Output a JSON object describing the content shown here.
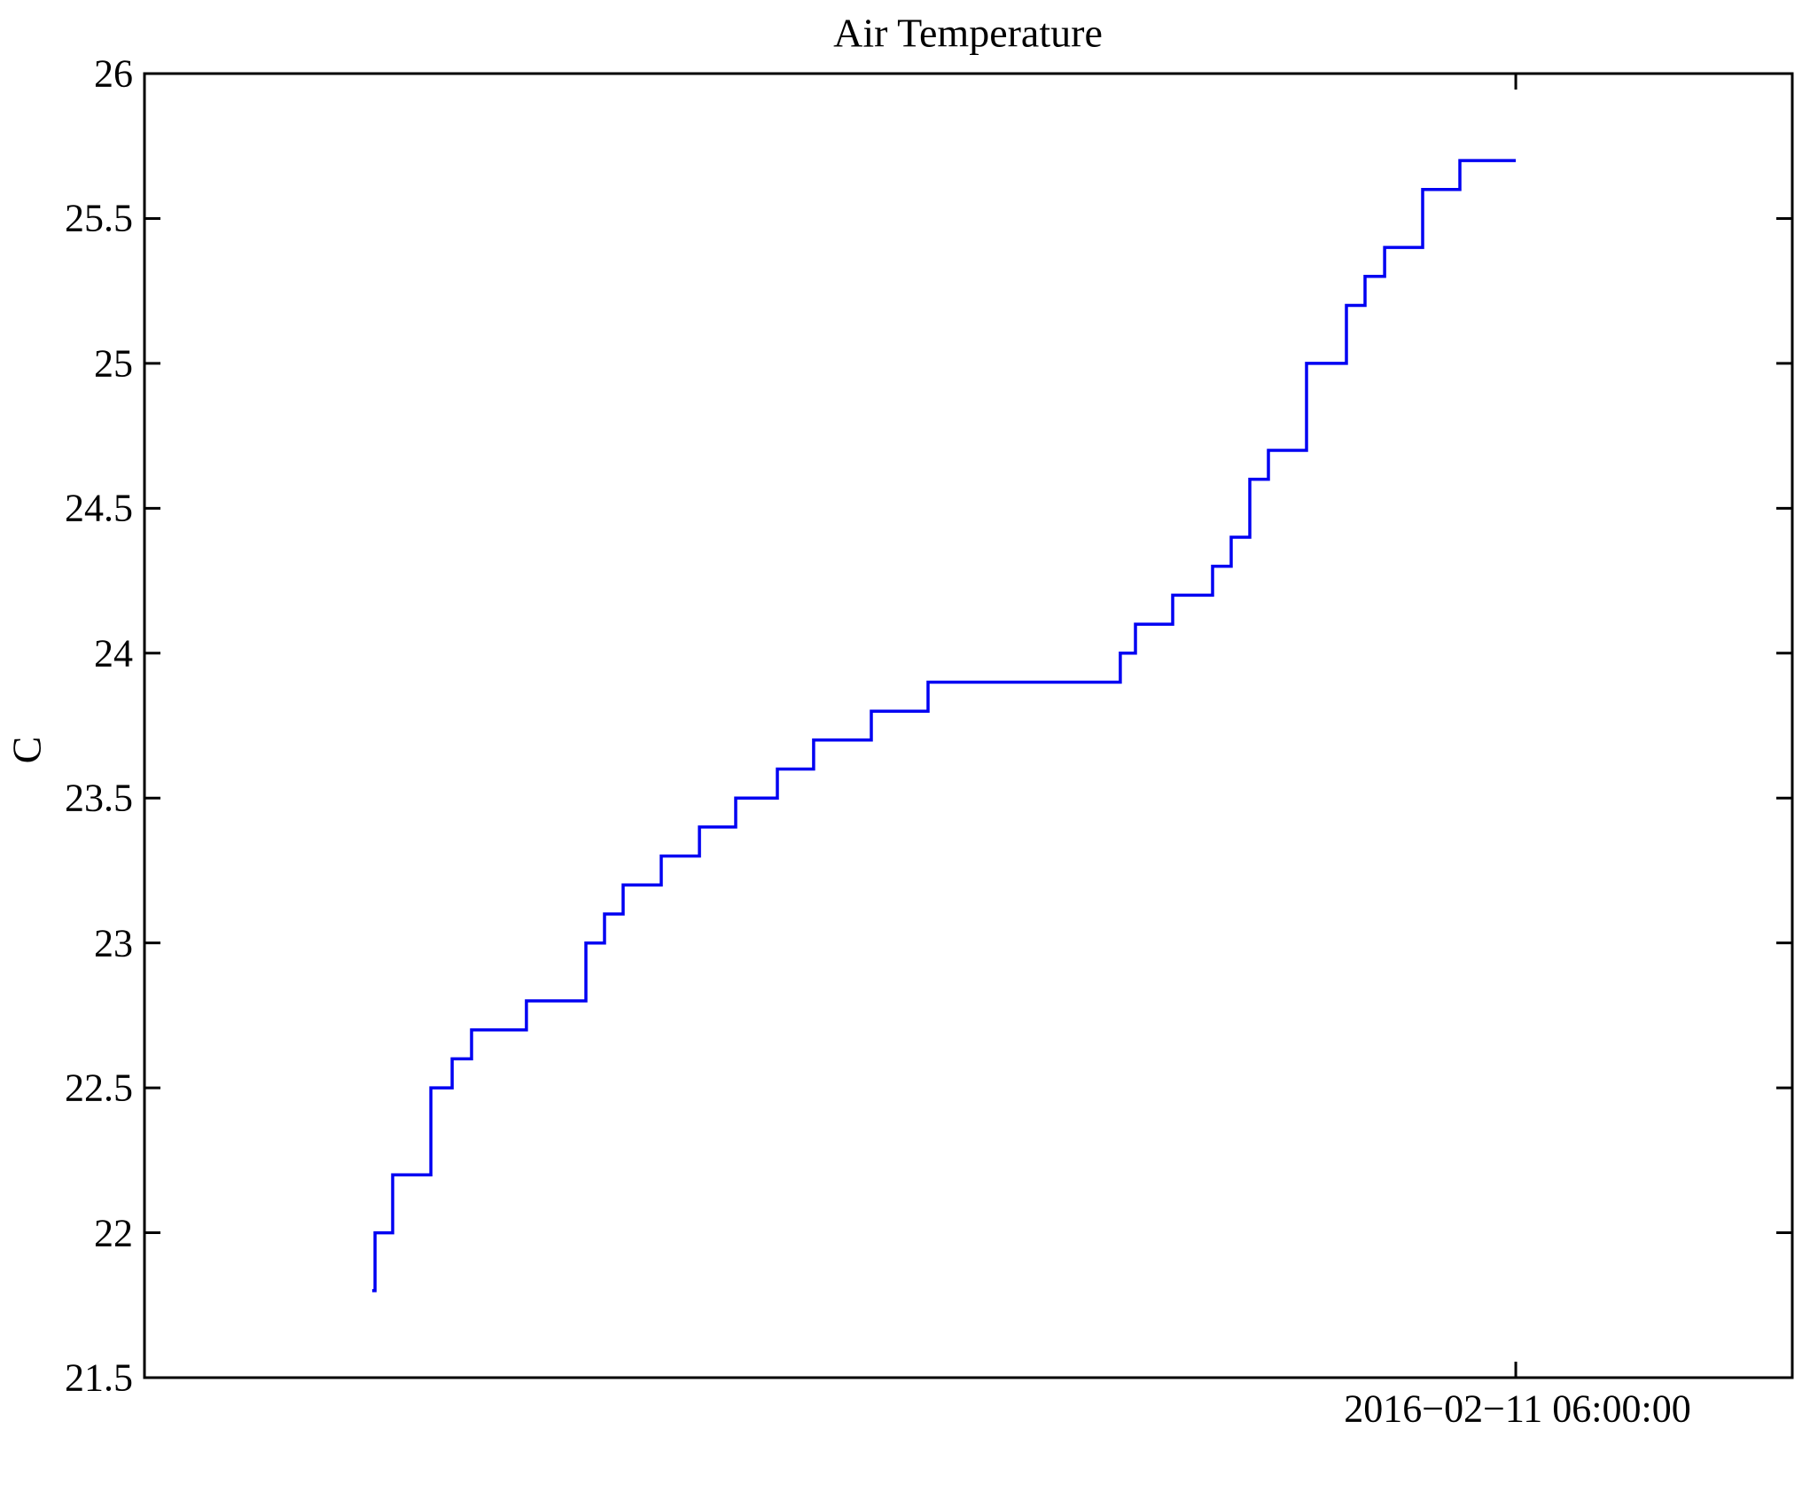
{
  "title": "Air Temperature",
  "chart_data": {
    "type": "line",
    "step": true,
    "title": "Air Temperature",
    "xlabel": "",
    "ylabel": "C",
    "ylim": [
      21.5,
      26
    ],
    "grid": false,
    "legend": "none",
    "line_color": "#0000f2",
    "axis_color": "#000000",
    "y_tick_values": [
      26,
      25.5,
      25,
      24.5,
      24,
      23.5,
      23,
      22.5,
      22,
      21.5
    ],
    "y_tick_labels": [
      "26",
      "25.5",
      "25",
      "24.5",
      "24",
      "23.5",
      "23",
      "22.5",
      "22",
      "21.5"
    ],
    "x_tick": {
      "label": "2016−02−11 06:00:00",
      "frac": 0.8322
    },
    "series": [
      {
        "name": "Air Temperature",
        "unit": "C",
        "end_frac": 0.8322,
        "points": [
          [
            0.1382,
            21.8
          ],
          [
            0.1399,
            22.0
          ],
          [
            0.1506,
            22.2
          ],
          [
            0.1738,
            22.5
          ],
          [
            0.1867,
            22.6
          ],
          [
            0.1985,
            22.7
          ],
          [
            0.2318,
            22.8
          ],
          [
            0.2679,
            23.0
          ],
          [
            0.2792,
            23.1
          ],
          [
            0.2905,
            23.2
          ],
          [
            0.3136,
            23.3
          ],
          [
            0.3368,
            23.4
          ],
          [
            0.3588,
            23.5
          ],
          [
            0.3841,
            23.6
          ],
          [
            0.4061,
            23.7
          ],
          [
            0.4411,
            23.8
          ],
          [
            0.4755,
            23.9
          ],
          [
            0.5922,
            24.0
          ],
          [
            0.6014,
            24.1
          ],
          [
            0.624,
            24.2
          ],
          [
            0.6482,
            24.3
          ],
          [
            0.6595,
            24.4
          ],
          [
            0.6708,
            24.6
          ],
          [
            0.6821,
            24.7
          ],
          [
            0.7052,
            25.0
          ],
          [
            0.7294,
            25.2
          ],
          [
            0.7407,
            25.3
          ],
          [
            0.7526,
            25.4
          ],
          [
            0.7757,
            25.6
          ],
          [
            0.7983,
            25.7
          ]
        ]
      }
    ]
  }
}
